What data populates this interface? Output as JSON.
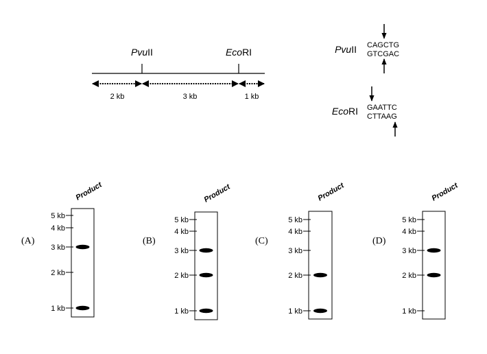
{
  "map": {
    "site1": {
      "italic": "Pvu",
      "roman": "II"
    },
    "site2": {
      "italic": "Eco",
      "roman": "RI"
    },
    "segments": [
      "2 kb",
      "3 kb",
      "1 kb"
    ]
  },
  "enzymes": [
    {
      "italic": "Pvu",
      "roman": "II",
      "top": "CAGCTG",
      "bottom": "GTCGAC"
    },
    {
      "italic": "Eco",
      "roman": "RI",
      "top": "GAATTC",
      "bottom": "CTTAAG"
    }
  ],
  "gel_header": "Product",
  "ladder": [
    "5 kb",
    "4 kb",
    "3 kb",
    "2 kb",
    "1 kb"
  ],
  "panels": [
    {
      "label": "(A)",
      "bands_kb": [
        3,
        1
      ]
    },
    {
      "label": "(B)",
      "bands_kb": [
        3,
        2,
        1
      ]
    },
    {
      "label": "(C)",
      "bands_kb": [
        2,
        1
      ]
    },
    {
      "label": "(D)",
      "bands_kb": [
        3,
        2
      ]
    }
  ]
}
